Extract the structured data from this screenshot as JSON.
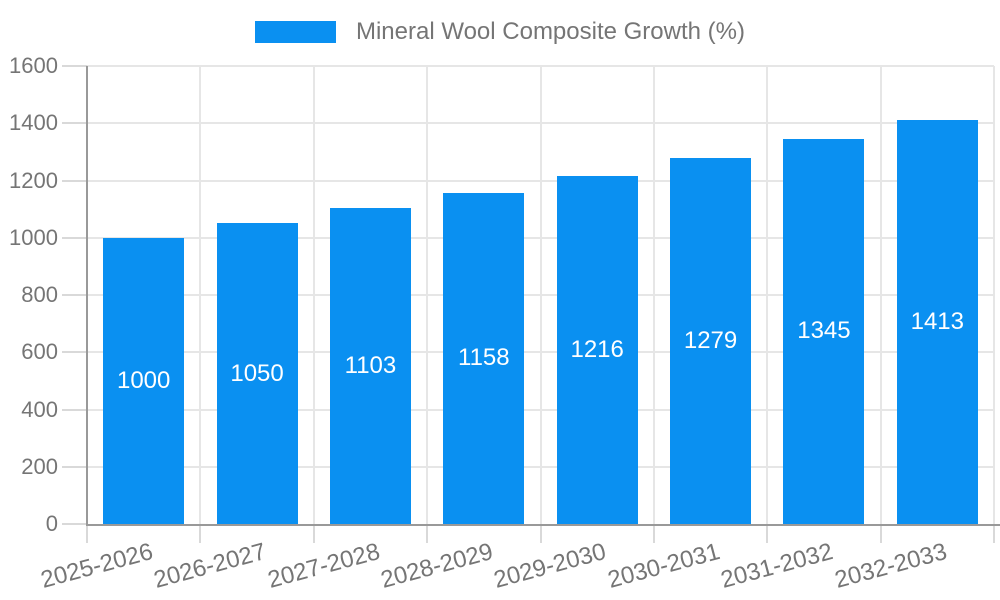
{
  "colors": {
    "bar": "#0a90f1",
    "bar_label": "#ffffff",
    "axis_line": "#999999",
    "gridline": "#e6e6e6",
    "tick": "#d9d9d9",
    "text": "#757575",
    "background": "#ffffff"
  },
  "legend": {
    "label": "Mineral Wool Composite Growth (%)",
    "position": "top-center"
  },
  "chart_data": {
    "type": "bar",
    "title": "Mineral Wool Composite Growth (%)",
    "series_name": "Mineral Wool Composite Growth (%)",
    "categories": [
      "2025-2026",
      "2026-2027",
      "2027-2028",
      "2028-2029",
      "2029-2030",
      "2030-2031",
      "2031-2032",
      "2032-2033"
    ],
    "values": [
      1000,
      1050,
      1103,
      1158,
      1216,
      1279,
      1345,
      1413
    ],
    "bar_value_labels": [
      "1000",
      "1050",
      "1103",
      "1158",
      "1216",
      "1279",
      "1345",
      "1413"
    ],
    "xlabel": "",
    "ylabel": "",
    "ylim": [
      0,
      1600
    ],
    "yticks": [
      0,
      200,
      400,
      600,
      800,
      1000,
      1200,
      1400,
      1600
    ],
    "grid": "horizontal and vertical, light gray",
    "legend_position": "top",
    "x_tick_rotation_deg": -15,
    "bar_label_position": "middle of bar, white text"
  }
}
